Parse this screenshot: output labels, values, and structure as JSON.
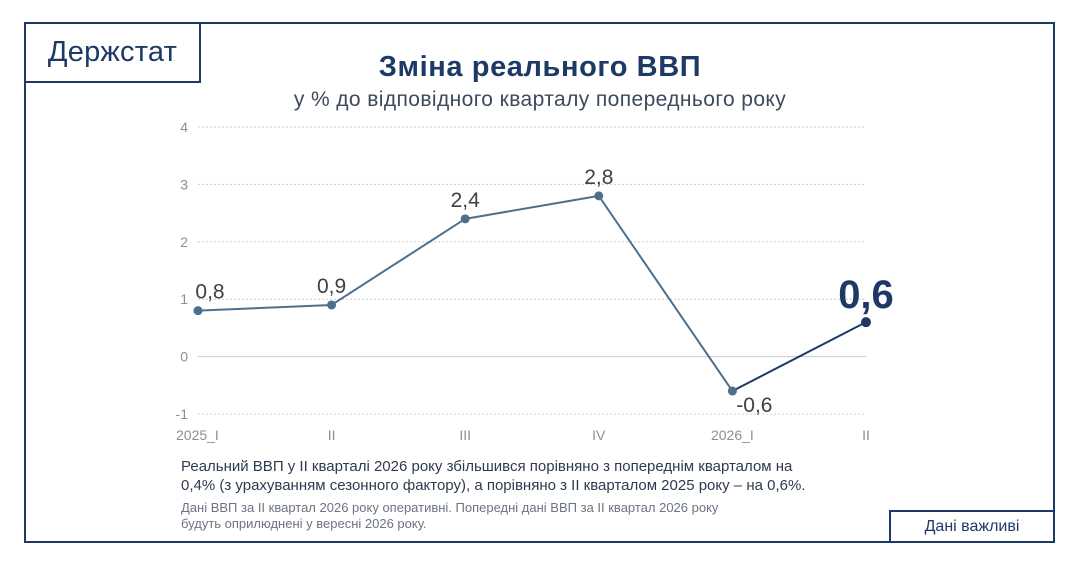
{
  "logo": {
    "text": "Держстат"
  },
  "header": {
    "title": "Зміна реального ВВП",
    "subtitle": "у % до відповідного кварталу попереднього року"
  },
  "chart_data": {
    "type": "line",
    "categories": [
      "2025_I",
      "II",
      "III",
      "IV",
      "2026_I",
      "II"
    ],
    "values": [
      0.8,
      0.9,
      2.4,
      2.8,
      -0.6,
      0.6
    ],
    "data_labels": [
      "0,8",
      "0,9",
      "2,4",
      "2,8",
      "-0,6",
      "0,6"
    ],
    "yticks": [
      4,
      3,
      2,
      1,
      0,
      -1
    ],
    "ylim": [
      -1,
      4
    ],
    "grid": true,
    "colors": {
      "line": "#4e6f8c",
      "highlight": "#1d3a66",
      "grid": "#c8ccd2"
    }
  },
  "notes": {
    "main_line1": "Реальний ВВП у II кварталі 2026 року збільшився порівняно з попереднім кварталом на",
    "main_line2": "0,4% (з урахуванням сезонного фактору), а порівняно з II кварталом 2025 року – на 0,6%.",
    "small_line1": "Дані ВВП за II квартал 2026 року оперативні. Попередні дані ВВП за II квартал 2026 року",
    "small_line2": "будуть оприлюднені у вересні 2026 року."
  },
  "badge": {
    "text": "Дані важливі"
  }
}
